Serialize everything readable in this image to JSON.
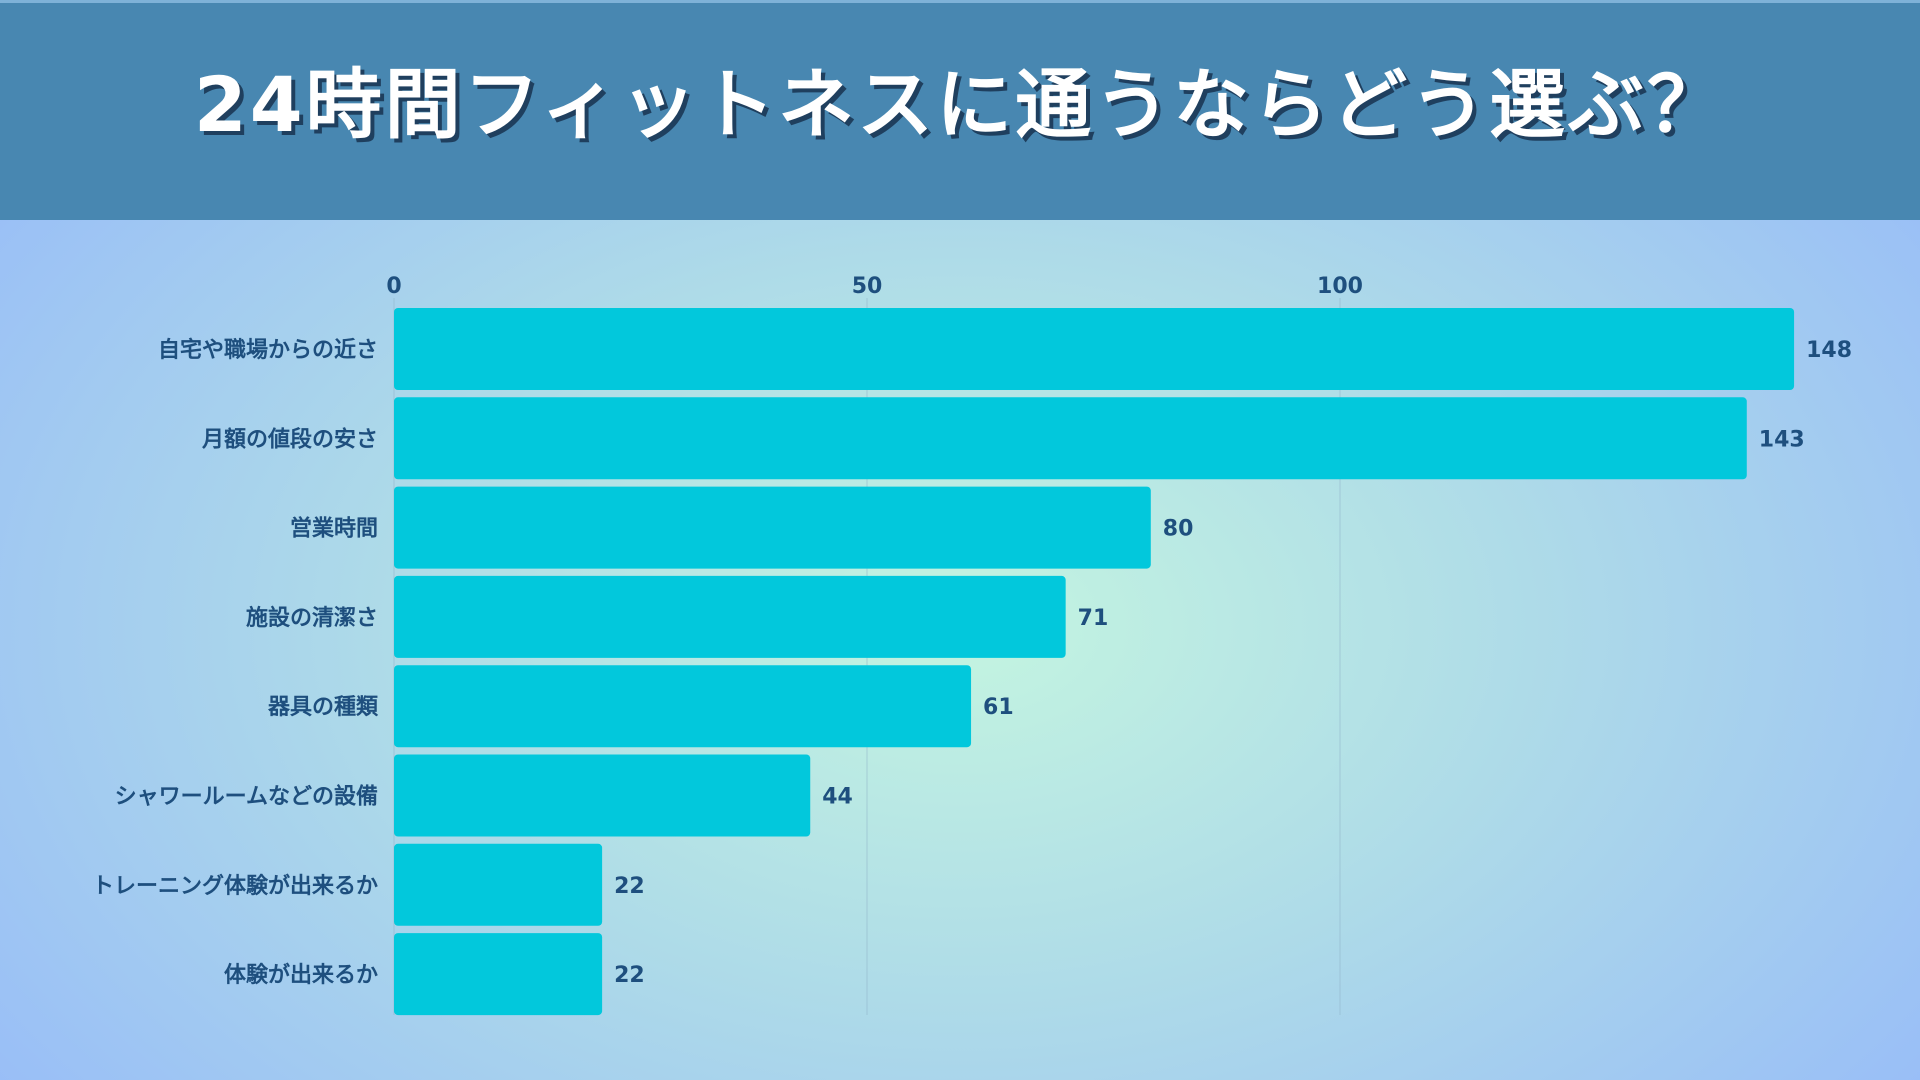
{
  "header": {
    "title": "24時間フィットネスに通うならどう選ぶ？"
  },
  "colors": {
    "header_bg": "#4887b1",
    "bar": "#02c8dc",
    "label_text": "#1e4f7e",
    "grid": "#8fb3c9"
  },
  "chart_data": {
    "type": "bar",
    "orientation": "horizontal",
    "title": "24時間フィットネスに通うならどう選ぶ？",
    "categories": [
      "自宅や職場からの近さ",
      "月額の値段の安さ",
      "営業時間",
      "施設の清潔さ",
      "器具の種類",
      "シャワールームなどの設備",
      "トレーニング体験が出来るか",
      "体験が出来るか"
    ],
    "values": [
      148,
      143,
      80,
      71,
      61,
      44,
      22,
      22
    ],
    "xlim": [
      0,
      160
    ],
    "xticks": [
      0,
      50,
      100
    ],
    "tick_labels": [
      "0",
      "50",
      "100"
    ],
    "value_labels": [
      "148",
      "143",
      "80",
      "71",
      "61",
      "44",
      "22",
      "22"
    ],
    "xaxis_position": "top",
    "grid": true,
    "legend": "none"
  }
}
